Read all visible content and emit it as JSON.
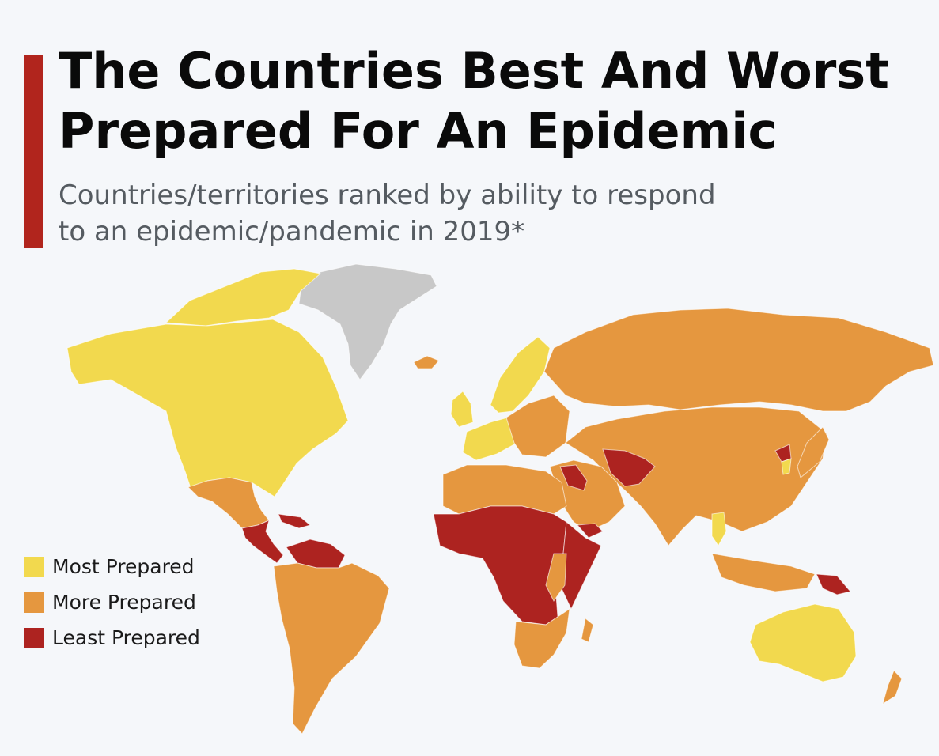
{
  "title_lines": [
    "The Countries Best And Worst",
    "Prepared For An Epidemic"
  ],
  "subtitle_lines": [
    "Countries/territories ranked by ability to respond",
    "to an epidemic/pandemic in 2019*"
  ],
  "colors": {
    "accent": "#b1251d",
    "most_prepared": "#f2d94e",
    "more_prepared": "#e5973f",
    "least_prepared": "#ad2320",
    "no_data": "#c8c8c8"
  },
  "legend": {
    "items": [
      {
        "label": "Most Prepared",
        "color": "#f2d94e"
      },
      {
        "label": "More Prepared",
        "color": "#e5973f"
      },
      {
        "label": "Least Prepared",
        "color": "#ad2320"
      }
    ]
  },
  "map": {
    "regions": [
      {
        "name": "north-america",
        "category": "most_prepared"
      },
      {
        "name": "greenland",
        "category": "no_data"
      },
      {
        "name": "mexico",
        "category": "more_prepared"
      },
      {
        "name": "central-america",
        "category": "least_prepared"
      },
      {
        "name": "south-america",
        "category": "more_prepared"
      },
      {
        "name": "venezuela",
        "category": "least_prepared"
      },
      {
        "name": "western-europe",
        "category": "most_prepared"
      },
      {
        "name": "scandinavia",
        "category": "most_prepared"
      },
      {
        "name": "russia",
        "category": "more_prepared"
      },
      {
        "name": "asia",
        "category": "more_prepared"
      },
      {
        "name": "middle-east",
        "category": "more_prepared"
      },
      {
        "name": "syria",
        "category": "least_prepared"
      },
      {
        "name": "afghanistan",
        "category": "least_prepared"
      },
      {
        "name": "north-korea",
        "category": "least_prepared"
      },
      {
        "name": "south-korea",
        "category": "most_prepared"
      },
      {
        "name": "thailand",
        "category": "most_prepared"
      },
      {
        "name": "north-africa",
        "category": "more_prepared"
      },
      {
        "name": "central-africa",
        "category": "least_prepared"
      },
      {
        "name": "horn-of-africa",
        "category": "least_prepared"
      },
      {
        "name": "east-africa",
        "category": "more_prepared"
      },
      {
        "name": "southern-africa",
        "category": "more_prepared"
      },
      {
        "name": "madagascar",
        "category": "more_prepared"
      },
      {
        "name": "yemen",
        "category": "least_prepared"
      },
      {
        "name": "southeast-asia-islands",
        "category": "more_prepared"
      },
      {
        "name": "papua-new-guinea",
        "category": "least_prepared"
      },
      {
        "name": "australia",
        "category": "most_prepared"
      },
      {
        "name": "new-zealand",
        "category": "more_prepared"
      },
      {
        "name": "japan",
        "category": "more_prepared"
      },
      {
        "name": "iceland",
        "category": "more_prepared"
      },
      {
        "name": "uk-ireland",
        "category": "most_prepared"
      }
    ]
  }
}
